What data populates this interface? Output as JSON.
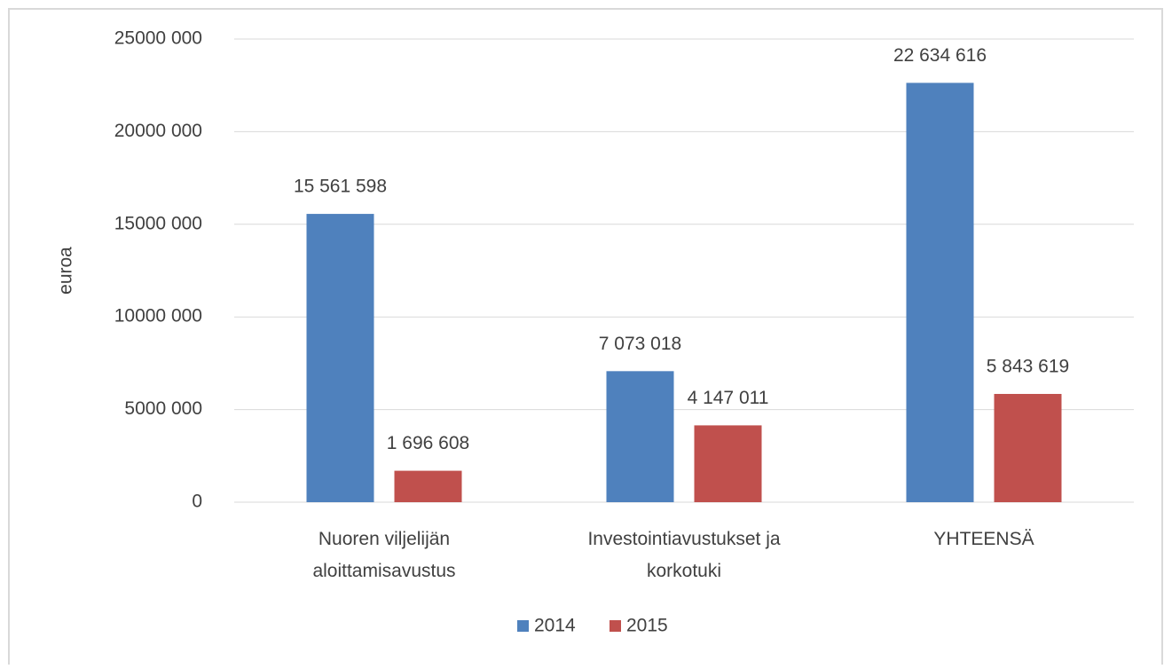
{
  "chart_data": {
    "type": "bar",
    "y_label": "euroa",
    "categories": [
      "Nuoren viljelijän\naloittamisavustus",
      "Investointiavustukset ja\nkorkotuki",
      "YHTEENSÄ"
    ],
    "series": [
      {
        "name": "2014",
        "color": "#4f81bd",
        "values": [
          15561598,
          7073018,
          22634616
        ],
        "value_labels": [
          "15 561 598",
          "7 073 018",
          "22 634 616"
        ]
      },
      {
        "name": "2015",
        "color": "#c0504d",
        "values": [
          1696608,
          4147011,
          5843619
        ],
        "value_labels": [
          "1 696 608",
          "4 147 011",
          "5 843 619"
        ]
      }
    ],
    "ylim": [
      0,
      25000000
    ],
    "yticks": [
      0,
      {
        "value": 5000000,
        "label": "5000 000"
      },
      {
        "value": 10000000,
        "label": "10000 000"
      },
      {
        "value": 15000000,
        "label": "15000 000"
      },
      {
        "value": 20000000,
        "label": "20000 000"
      },
      {
        "value": 25000000,
        "label": "25000 000"
      }
    ],
    "grid": true,
    "legend": "bottom"
  }
}
